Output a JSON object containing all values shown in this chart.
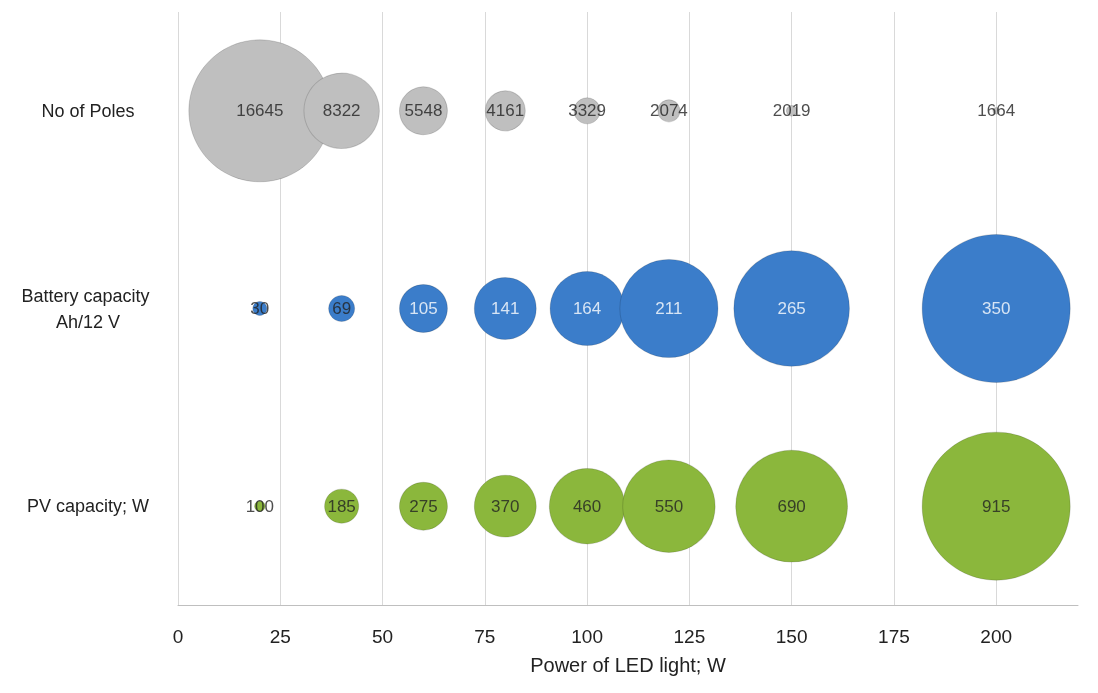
{
  "chart_data": {
    "type": "bubble",
    "orientation": "horizontal",
    "xlabel": "Power of LED light; W",
    "categories": [
      "No of Poles",
      "Battery capacity Ah/12 V",
      "PV capacity; W"
    ],
    "series": [
      {
        "colors": [
          "#bfbfbf",
          "#3b7dca",
          "#8bb73c"
        ],
        "values": [
          20,
          20,
          20
        ],
        "sizes": [
          0.92,
          0.009,
          0.005
        ]
      },
      {
        "colors": [
          "#bfbfbf",
          "#3b7dca",
          "#8bb73c"
        ],
        "values": [
          40,
          40,
          40
        ],
        "sizes": [
          0.26,
          0.031,
          0.053
        ]
      },
      {
        "colors": [
          "#bfbfbf",
          "#3b7dca",
          "#8bb73c"
        ],
        "values": [
          60,
          60,
          60
        ],
        "sizes": [
          0.105,
          0.105,
          0.105
        ]
      },
      {
        "colors": [
          "#bfbfbf",
          "#3b7dca",
          "#8bb73c"
        ],
        "values": [
          80,
          80,
          80
        ],
        "sizes": [
          0.073,
          0.175,
          0.175
        ]
      },
      {
        "colors": [
          "#bfbfbf",
          "#3b7dca",
          "#8bb73c"
        ],
        "values": [
          100,
          100,
          100
        ],
        "sizes": [
          0.031,
          0.25,
          0.26
        ]
      },
      {
        "colors": [
          "#bfbfbf",
          "#3b7dca",
          "#8bb73c"
        ],
        "values": [
          120,
          120,
          120
        ],
        "sizes": [
          0.022,
          0.44,
          0.39
        ]
      },
      {
        "colors": [
          "#bfbfbf",
          "#3b7dca",
          "#8bb73c"
        ],
        "values": [
          150,
          150,
          150
        ],
        "sizes": [
          0.005,
          0.61,
          0.57
        ]
      },
      {
        "colors": [
          "#bfbfbf",
          "#3b7dca",
          "#8bb73c"
        ],
        "values": [
          200,
          200,
          200
        ],
        "sizes": [
          0.002,
          1,
          1
        ]
      }
    ],
    "annotations": [
      {
        "text": "16645",
        "x": 20,
        "y": "No of Poles"
      },
      {
        "text": "8322",
        "x": 40,
        "y": "No of Poles"
      },
      {
        "text": "5548",
        "x": 60,
        "y": "No of Poles"
      },
      {
        "text": "4161",
        "x": 80,
        "y": "No of Poles"
      },
      {
        "text": "3329",
        "x": 100,
        "y": "No of Poles"
      },
      {
        "text": "2074",
        "x": 120,
        "y": "No of Poles"
      },
      {
        "text": "2019",
        "x": 150,
        "y": "No of Poles"
      },
      {
        "text": "1664",
        "x": 200,
        "y": "No of Poles"
      },
      {
        "text": "30",
        "x": 20,
        "y": "Battery capacity Ah/12 V"
      },
      {
        "text": "69",
        "x": 40,
        "y": "Battery capacity Ah/12 V"
      },
      {
        "text": "105",
        "x": 60,
        "y": "Battery capacity Ah/12 V"
      },
      {
        "text": "141",
        "x": 80,
        "y": "Battery capacity Ah/12 V"
      },
      {
        "text": "164",
        "x": 100,
        "y": "Battery capacity Ah/12 V"
      },
      {
        "text": "211",
        "x": 120,
        "y": "Battery capacity Ah/12 V"
      },
      {
        "text": "265",
        "x": 150,
        "y": "Battery capacity Ah/12 V"
      },
      {
        "text": "350",
        "x": 200,
        "y": "Battery capacity Ah/12 V"
      },
      {
        "text": "100",
        "x": 20,
        "y": "PV capacity; W"
      },
      {
        "text": "185",
        "x": 40,
        "y": "PV capacity; W"
      },
      {
        "text": "275",
        "x": 60,
        "y": "PV capacity; W"
      },
      {
        "text": "370",
        "x": 80,
        "y": "PV capacity; W"
      },
      {
        "text": "460",
        "x": 100,
        "y": "PV capacity; W"
      },
      {
        "text": "550",
        "x": 120,
        "y": "PV capacity; W"
      },
      {
        "text": "690",
        "x": 150,
        "y": "PV capacity; W"
      },
      {
        "text": "915",
        "x": 200,
        "y": "PV capacity; W"
      }
    ],
    "xlim": [
      0,
      220
    ],
    "xticks": [
      0,
      25,
      50,
      75,
      100,
      125,
      150,
      175,
      200
    ],
    "grid": "x"
  }
}
